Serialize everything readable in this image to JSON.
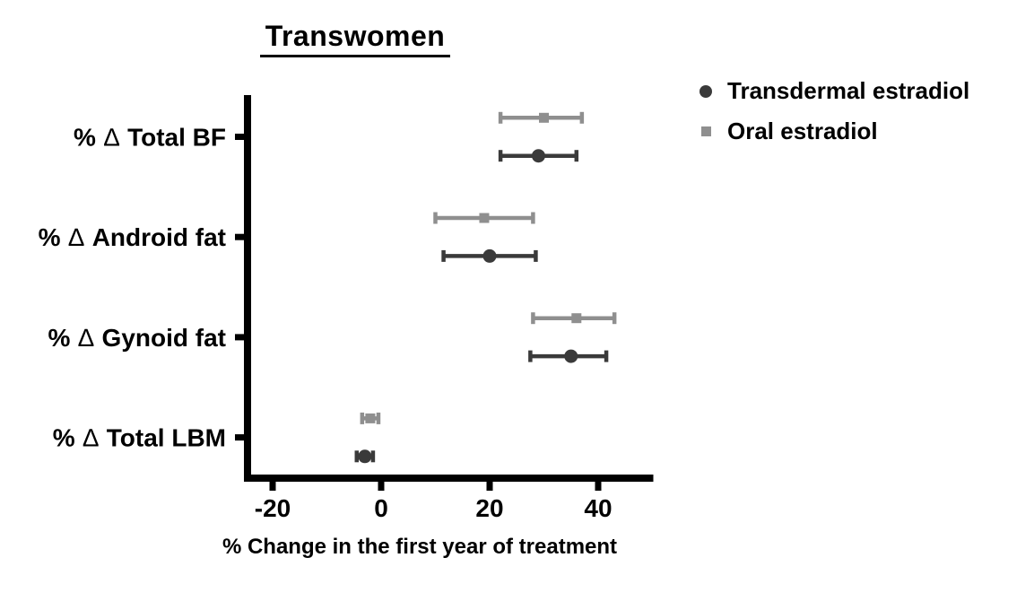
{
  "title": "Transwomen",
  "legend": {
    "items": [
      {
        "label": "Transdermal estradiol",
        "marker": "circle",
        "color": "#3a3a3a"
      },
      {
        "label": "Oral estradiol",
        "marker": "square",
        "color": "#8f8f8f"
      }
    ]
  },
  "chart_data": {
    "type": "scatter",
    "subtype": "horizontal-dot-plot-with-error-bars",
    "title": "Transwomen",
    "xlabel": "% Change in the first year of treatment",
    "xlim": [
      -25,
      50
    ],
    "xticks": [
      -20,
      0,
      20,
      40
    ],
    "grid": false,
    "legend_position": "top-right",
    "categories": [
      "% ∆ Total BF",
      "% ∆ Android fat",
      "% ∆ Gynoid fat",
      "% ∆ Total LBM"
    ],
    "series": [
      {
        "name": "Oral estradiol",
        "marker": "square",
        "color": "#8f8f8f",
        "row": "top",
        "values": [
          30,
          19,
          36,
          -2
        ],
        "ci_low": [
          22,
          10,
          28,
          -3.5
        ],
        "ci_high": [
          37,
          28,
          43,
          -0.5
        ]
      },
      {
        "name": "Transdermal estradiol",
        "marker": "circle",
        "color": "#3a3a3a",
        "row": "bottom",
        "values": [
          29,
          20,
          35,
          -3
        ],
        "ci_low": [
          22,
          11.5,
          27.5,
          -4.5
        ],
        "ci_high": [
          36,
          28.5,
          41.5,
          -1.5
        ]
      }
    ]
  }
}
